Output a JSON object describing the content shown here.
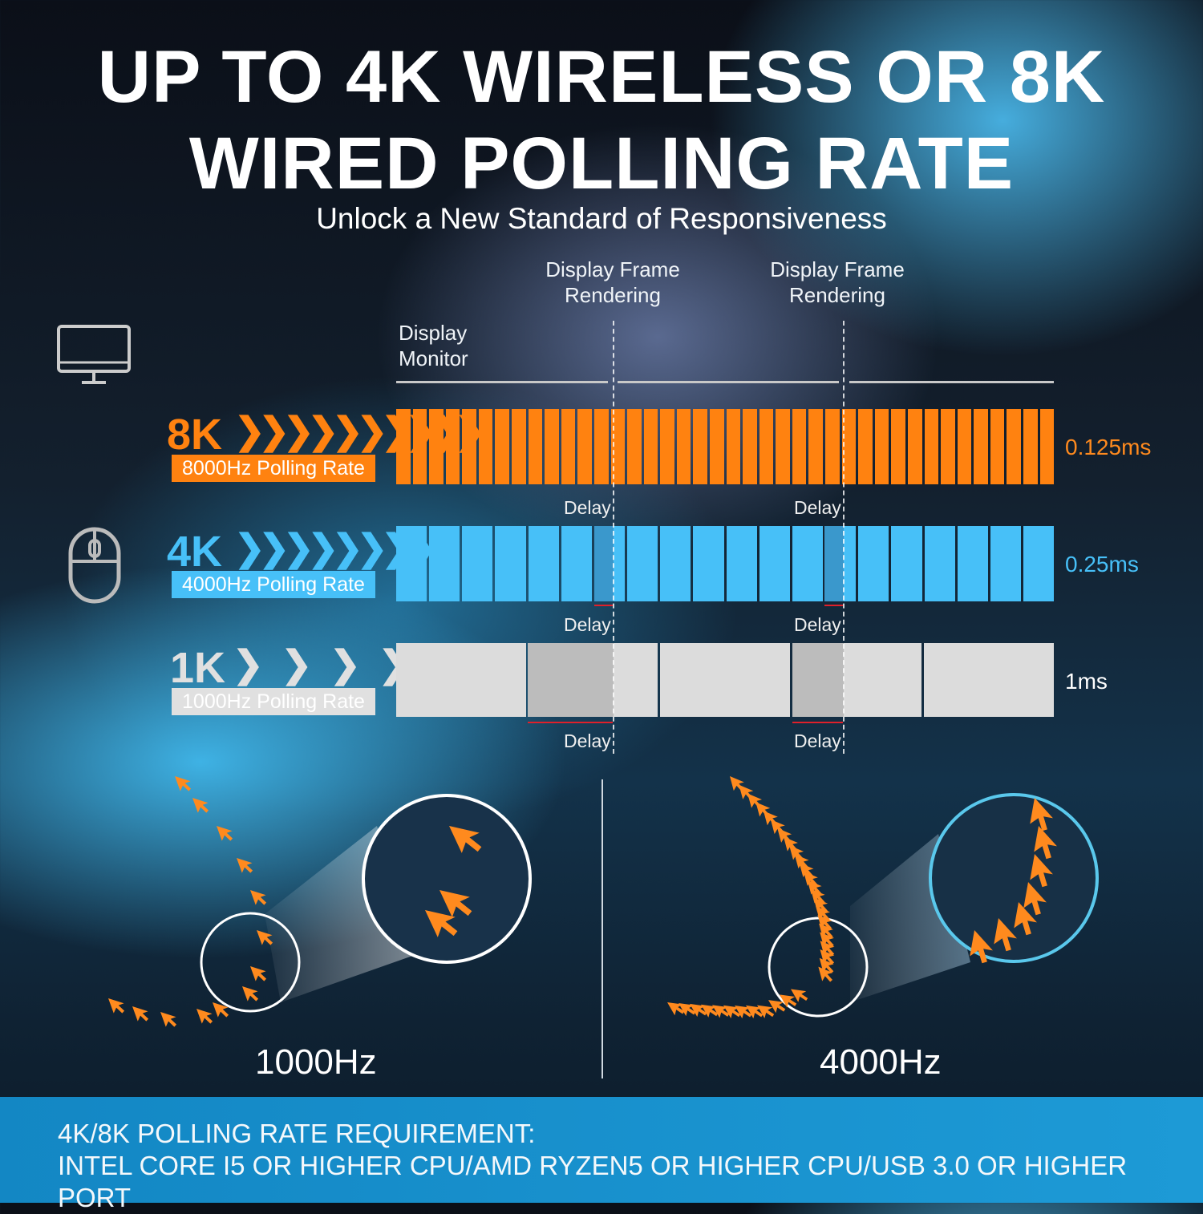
{
  "title": {
    "line1": "UP TO 4K WIRELESS OR 8K",
    "line2": "WIRED POLLING RATE"
  },
  "subtitle": "Unlock a New Standard of Responsiveness",
  "diagram": {
    "frame_label_1": "Display Frame\nRendering",
    "frame_label_2": "Display Frame\nRendering",
    "monitor_label": "Display\nMonitor",
    "icons": [
      "monitor-icon",
      "mouse-icon",
      "cursor-arrow-icon"
    ],
    "rows": [
      {
        "badge": "8K",
        "rate_label": "8000Hz Polling Rate",
        "interval": "0.125ms",
        "segments": 40,
        "color": "#ff8210",
        "delay_label": "Delay"
      },
      {
        "badge": "4K",
        "rate_label": "4000Hz Polling Rate",
        "interval": "0.25ms",
        "segments": 20,
        "color": "#47c0f8",
        "delay_label": "Delay"
      },
      {
        "badge": "1K",
        "rate_label": "1000Hz Polling Rate",
        "interval": "1ms",
        "segments": 5,
        "color": "#dcdcdc",
        "delay_label": "Delay"
      }
    ],
    "delay_marker_color": "#e0202a"
  },
  "comparison": {
    "left_label": "1000Hz",
    "right_label": "4000Hz",
    "cursor_color": "#ff8a1e"
  },
  "footer": {
    "heading": "4K/8K POLLING RATE REQUIREMENT:",
    "text": "INTEL CORE I5 OR HIGHER CPU/AMD RYZEN5 OR HIGHER CPU/USB 3.0 OR HIGHER PORT"
  }
}
